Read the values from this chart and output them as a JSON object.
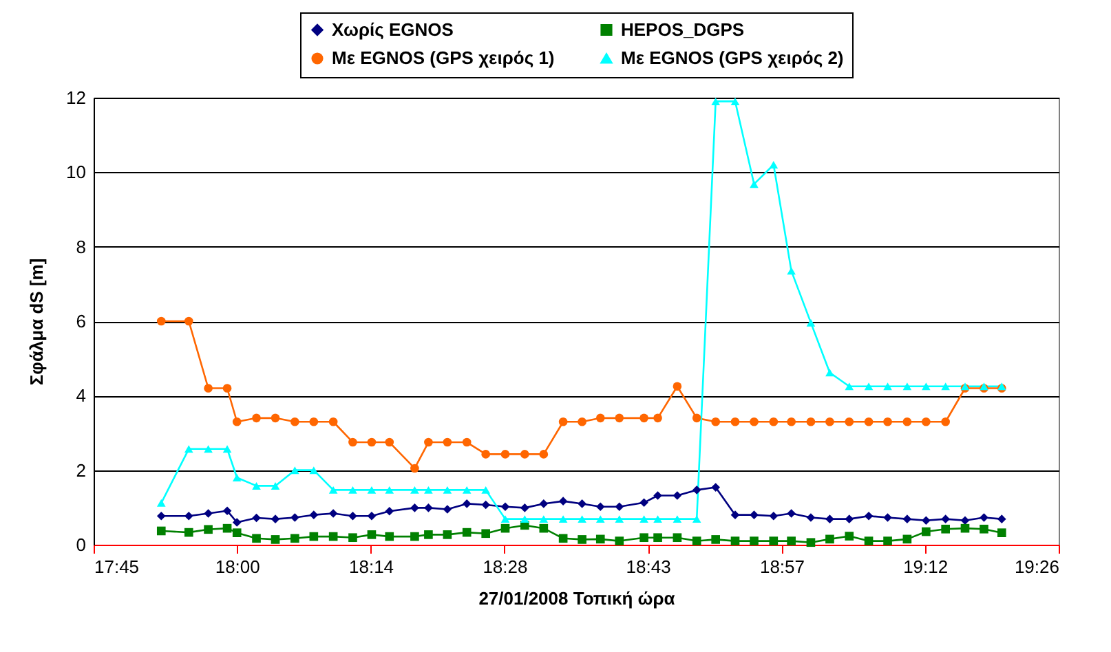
{
  "chart_data": {
    "type": "line",
    "xlabel": "27/01/2008 Τοπική ώρα",
    "ylabel": "Σφάλμα dS [m]",
    "x": [
      17.868,
      17.916,
      17.95,
      17.983,
      18.0,
      18.034,
      18.067,
      18.101,
      18.134,
      18.168,
      18.202,
      18.235,
      18.266,
      18.31,
      18.334,
      18.367,
      18.401,
      18.434,
      18.468,
      18.502,
      18.535,
      18.569,
      18.602,
      18.634,
      18.667,
      18.71,
      18.734,
      18.768,
      18.802,
      18.835,
      18.869,
      18.902,
      18.936,
      18.967,
      19.001,
      19.034,
      19.068,
      19.102,
      19.135,
      19.169,
      19.202,
      19.236,
      19.27,
      19.303,
      19.334
    ],
    "series": [
      {
        "name": "Χωρίς EGNOS",
        "color": "#000080",
        "marker": "diamond",
        "values": [
          0.77,
          0.77,
          0.84,
          0.91,
          0.6,
          0.72,
          0.69,
          0.73,
          0.8,
          0.84,
          0.77,
          0.77,
          0.9,
          0.99,
          0.99,
          0.95,
          1.1,
          1.07,
          1.02,
          0.99,
          1.1,
          1.17,
          1.1,
          1.02,
          1.02,
          1.13,
          1.32,
          1.32,
          1.47,
          1.54,
          0.8,
          0.8,
          0.77,
          0.84,
          0.73,
          0.69,
          0.69,
          0.77,
          0.73,
          0.69,
          0.65,
          0.69,
          0.65,
          0.73,
          0.69
        ]
      },
      {
        "name": "HEPOS_DGPS",
        "color": "#008000",
        "marker": "square",
        "values": [
          0.37,
          0.33,
          0.41,
          0.44,
          0.32,
          0.17,
          0.14,
          0.17,
          0.22,
          0.22,
          0.19,
          0.27,
          0.22,
          0.22,
          0.27,
          0.27,
          0.33,
          0.3,
          0.44,
          0.52,
          0.44,
          0.17,
          0.14,
          0.15,
          0.1,
          0.19,
          0.19,
          0.19,
          0.1,
          0.14,
          0.1,
          0.1,
          0.1,
          0.1,
          0.06,
          0.15,
          0.23,
          0.1,
          0.1,
          0.15,
          0.35,
          0.42,
          0.44,
          0.42,
          0.32
        ]
      },
      {
        "name": "Με EGNOS (GPS χειρός 1)",
        "color": "#ff6600",
        "marker": "circle",
        "values": [
          6.0,
          6.0,
          4.2,
          4.2,
          3.3,
          3.4,
          3.4,
          3.3,
          3.3,
          3.3,
          2.75,
          2.75,
          2.75,
          2.05,
          2.75,
          2.75,
          2.75,
          2.43,
          2.43,
          2.43,
          2.43,
          3.3,
          3.3,
          3.4,
          3.4,
          3.4,
          3.4,
          4.25,
          3.4,
          3.3,
          3.3,
          3.3,
          3.3,
          3.3,
          3.3,
          3.3,
          3.3,
          3.3,
          3.3,
          3.3,
          3.3,
          3.3,
          4.2,
          4.2,
          4.2
        ]
      },
      {
        "name": "Με EGNOS (GPS χειρός 2)",
        "color": "#00ffff",
        "marker": "triangle",
        "values": [
          1.12,
          2.57,
          2.57,
          2.57,
          1.8,
          1.58,
          1.58,
          2.0,
          2.0,
          1.47,
          1.47,
          1.47,
          1.47,
          1.47,
          1.47,
          1.47,
          1.47,
          1.47,
          0.69,
          0.69,
          0.69,
          0.69,
          0.69,
          0.69,
          0.69,
          0.69,
          0.69,
          0.69,
          0.69,
          11.9,
          11.9,
          9.68,
          10.2,
          7.35,
          5.96,
          4.62,
          4.25,
          4.25,
          4.25,
          4.25,
          4.25,
          4.25,
          4.25,
          4.25,
          4.25
        ]
      }
    ],
    "xlim": [
      17.75,
      19.4333
    ],
    "xticks": [
      {
        "value": 17.75,
        "label": "17:45"
      },
      {
        "value": 18.0,
        "label": "18:00"
      },
      {
        "value": 18.2333,
        "label": "18:14"
      },
      {
        "value": 18.4667,
        "label": "18:28"
      },
      {
        "value": 18.7167,
        "label": "18:43"
      },
      {
        "value": 18.95,
        "label": "18:57"
      },
      {
        "value": 19.2,
        "label": "19:12"
      },
      {
        "value": 19.4333,
        "label": "19:26"
      }
    ],
    "ylim": [
      0,
      12
    ],
    "yticks": [
      0,
      2,
      4,
      6,
      8,
      10,
      12
    ],
    "grid": "y",
    "legend": "top",
    "line_style": "solid"
  }
}
